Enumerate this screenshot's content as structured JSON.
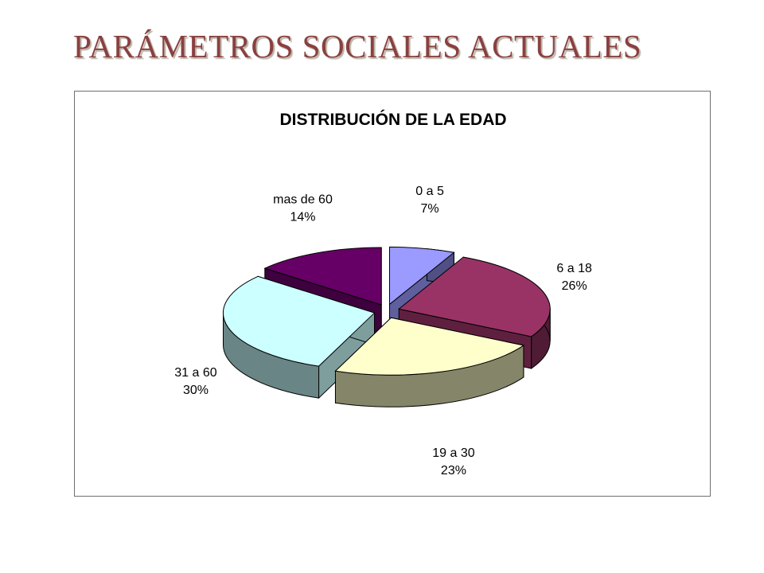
{
  "slide": {
    "title": "PARÁMETROS SOCIALES ACTUALES"
  },
  "chart_data": {
    "type": "pie",
    "title": "DISTRIBUCIÓN DE LA EDAD",
    "three_d": true,
    "exploded": true,
    "start_angle_deg": 0,
    "direction": "clockwise",
    "legend": "none",
    "slices": [
      {
        "name": "0 a 5",
        "value": 7,
        "label": "7%",
        "color": "#9a9aff"
      },
      {
        "name": "6 a 18",
        "value": 26,
        "label": "26%",
        "color": "#993366"
      },
      {
        "name": "19 a 30",
        "value": 23,
        "label": "23%",
        "color": "#ffffcc"
      },
      {
        "name": "31 a 60",
        "value": 30,
        "label": "30%",
        "color": "#ccffff"
      },
      {
        "name": "mas de 60",
        "value": 14,
        "label": "14%",
        "color": "#660066"
      }
    ]
  }
}
